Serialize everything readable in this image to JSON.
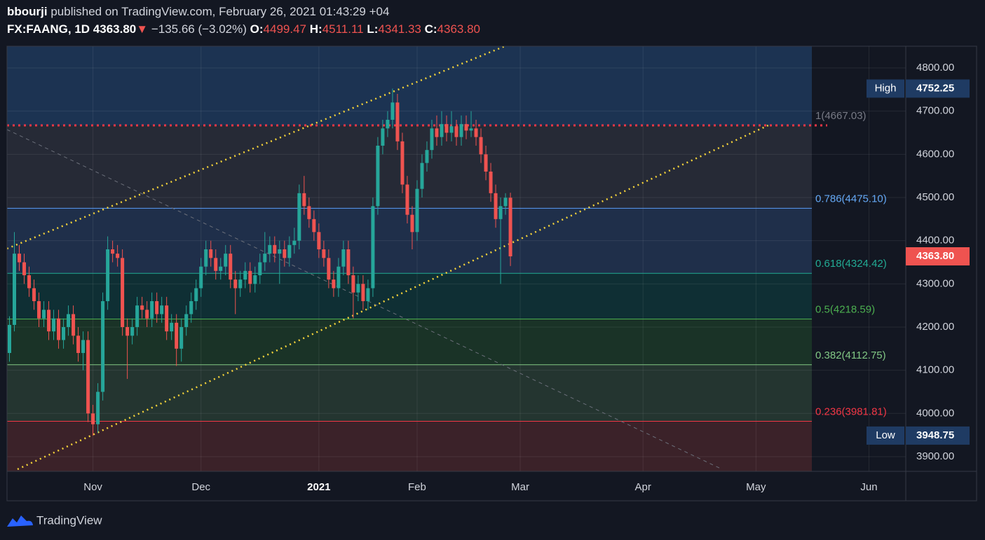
{
  "header": {
    "author": "bbourji",
    "published": "published on TradingView.com, February 26, 2021 01:43:29 +04",
    "symbol": "FX:FAANG, 1D",
    "last": "4363.80",
    "arrow": "▼",
    "change": "−135.66 (−3.02%)",
    "o_label": "O:",
    "o": "4499.47",
    "h_label": "H:",
    "h": "4511.11",
    "l_label": "L:",
    "l": "4341.33",
    "c_label": "C:",
    "c": "4363.80"
  },
  "footer": {
    "brand": "TradingView"
  },
  "chart_data": {
    "type": "candlestick",
    "xlim": [
      -0.5,
      182.5
    ],
    "xticks": [
      {
        "value": 17,
        "label": "Nov"
      },
      {
        "value": 39,
        "label": "Dec"
      },
      {
        "value": 63,
        "label": "2021"
      },
      {
        "value": 83,
        "label": "Feb"
      },
      {
        "value": 104,
        "label": "Mar"
      },
      {
        "value": 129,
        "label": "Apr"
      },
      {
        "value": 152,
        "label": "May"
      },
      {
        "value": 175,
        "label": "Jun"
      }
    ],
    "ylim": [
      3865.9,
      4850.3
    ],
    "yticks": [
      {
        "value": 3900,
        "label": "3900.00"
      },
      {
        "value": 4000,
        "label": "4000.00"
      },
      {
        "value": 4100,
        "label": "4100.00"
      },
      {
        "value": 4200,
        "label": "4200.00"
      },
      {
        "value": 4300,
        "label": "4300.00"
      },
      {
        "value": 4400,
        "label": "4400.00"
      },
      {
        "value": 4500,
        "label": "4500.00"
      },
      {
        "value": 4600,
        "label": "4600.00"
      },
      {
        "value": 4700,
        "label": "4700.00"
      },
      {
        "value": 4800,
        "label": "4800.00"
      }
    ],
    "grid": true,
    "up_color": "#26a69a",
    "down_color": "#ef5350",
    "open": [
      4140,
      4205,
      4370,
      4350,
      4320,
      4290,
      4260,
      4220,
      4240,
      4190,
      4220,
      4170,
      4200,
      4230,
      4180,
      4140,
      4170,
      4000,
      3975,
      4050,
      4260,
      4380,
      4370,
      4360,
      4200,
      4180,
      4200,
      4250,
      4240,
      4220,
      4260,
      4230,
      4250,
      4190,
      4210,
      4150,
      4200,
      4230,
      4260,
      4290,
      4340,
      4380,
      4360,
      4330,
      4340,
      4370,
      4310,
      4290,
      4310,
      4330,
      4300,
      4320,
      4350,
      4370,
      4390,
      4370,
      4380,
      4360,
      4390,
      4400,
      4510,
      4480,
      4450,
      4420,
      4380,
      4360,
      4310,
      4290,
      4340,
      4380,
      4320,
      4280,
      4300,
      4260,
      4290,
      4480,
      4620,
      4660,
      4680,
      4720,
      4630,
      4530,
      4460,
      4420,
      4520,
      4580,
      4610,
      4660,
      4640,
      4670,
      4650,
      4665,
      4640,
      4670,
      4655,
      4660,
      4640,
      4600,
      4560,
      4510,
      4450,
      4480,
      4499.47
    ],
    "high": [
      4225,
      4420,
      4390,
      4370,
      4340,
      4310,
      4280,
      4260,
      4260,
      4240,
      4240,
      4220,
      4250,
      4250,
      4200,
      4190,
      4190,
      4020,
      4070,
      4280,
      4410,
      4400,
      4390,
      4380,
      4220,
      4220,
      4270,
      4270,
      4260,
      4280,
      4280,
      4270,
      4270,
      4230,
      4230,
      4220,
      4250,
      4280,
      4310,
      4360,
      4400,
      4400,
      4380,
      4360,
      4390,
      4390,
      4330,
      4330,
      4350,
      4350,
      4340,
      4370,
      4420,
      4410,
      4410,
      4400,
      4400,
      4410,
      4430,
      4530,
      4550,
      4500,
      4470,
      4440,
      4400,
      4380,
      4330,
      4360,
      4400,
      4400,
      4340,
      4320,
      4320,
      4310,
      4500,
      4640,
      4680,
      4700,
      4752.25,
      4740,
      4650,
      4550,
      4480,
      4540,
      4600,
      4630,
      4680,
      4690,
      4700,
      4690,
      4700,
      4680,
      4690,
      4690,
      4700,
      4680,
      4660,
      4620,
      4580,
      4530,
      4500,
      4510,
      4511.11
    ],
    "low": [
      4120,
      4190,
      4330,
      4300,
      4270,
      4240,
      4200,
      4200,
      4170,
      4170,
      4150,
      4150,
      4180,
      4160,
      4120,
      4100,
      3980,
      3948.75,
      3955,
      4030,
      4240,
      4350,
      4340,
      4180,
      4080,
      4160,
      4180,
      4220,
      4200,
      4200,
      4210,
      4210,
      4170,
      4170,
      4110,
      4120,
      4180,
      4210,
      4240,
      4270,
      4320,
      4340,
      4310,
      4310,
      4320,
      4290,
      4230,
      4270,
      4290,
      4280,
      4280,
      4300,
      4330,
      4350,
      4350,
      4300,
      4340,
      4340,
      4370,
      4380,
      4460,
      4430,
      4400,
      4360,
      4340,
      4290,
      4270,
      4270,
      4320,
      4300,
      4220,
      4260,
      4240,
      4240,
      4270,
      4460,
      4600,
      4640,
      4660,
      4610,
      4510,
      4440,
      4380,
      4400,
      4500,
      4560,
      4590,
      4620,
      4620,
      4630,
      4630,
      4620,
      4620,
      4635,
      4640,
      4620,
      4580,
      4540,
      4490,
      4430,
      4300,
      4460,
      4341.33
    ],
    "close": [
      4205,
      4370,
      4350,
      4320,
      4290,
      4260,
      4220,
      4240,
      4190,
      4220,
      4170,
      4200,
      4230,
      4180,
      4140,
      4170,
      4000,
      3975,
      4050,
      4260,
      4380,
      4370,
      4360,
      4200,
      4180,
      4200,
      4250,
      4240,
      4220,
      4260,
      4230,
      4250,
      4190,
      4210,
      4150,
      4200,
      4230,
      4260,
      4290,
      4340,
      4380,
      4360,
      4330,
      4340,
      4370,
      4310,
      4290,
      4310,
      4330,
      4300,
      4320,
      4350,
      4370,
      4390,
      4370,
      4380,
      4360,
      4390,
      4400,
      4510,
      4480,
      4450,
      4420,
      4380,
      4360,
      4310,
      4290,
      4340,
      4380,
      4320,
      4280,
      4300,
      4260,
      4290,
      4480,
      4620,
      4660,
      4680,
      4720,
      4630,
      4530,
      4460,
      4420,
      4520,
      4580,
      4610,
      4660,
      4640,
      4670,
      4650,
      4665,
      4640,
      4670,
      4655,
      4660,
      4640,
      4600,
      4560,
      4510,
      4450,
      4480,
      4499.47,
      4363.8
    ],
    "fib_levels": [
      {
        "value": 4667.03,
        "label": "1(4667.03)",
        "color": "#787b86",
        "line_color": "#f23645"
      },
      {
        "value": 4475.1,
        "label": "0.786(4475.10)",
        "color": "#64a8f5",
        "line_color": "#5b9cf6"
      },
      {
        "value": 4324.42,
        "label": "0.618(4324.42)",
        "color": "#22ab94",
        "line_color": "#22ab94"
      },
      {
        "value": 4218.59,
        "label": "0.5(4218.59)",
        "color": "#4caf50",
        "line_color": "#4caf50"
      },
      {
        "value": 4112.75,
        "label": "0.382(4112.75)",
        "color": "#81c784",
        "line_color": "#81c784"
      },
      {
        "value": 3981.81,
        "label": "0.236(3981.81)",
        "color": "#f23645",
        "line_color": "#f23645"
      }
    ],
    "fib_band_colors": [
      "#1c3352",
      "#262a36",
      "#1f2f4a",
      "#0f2f34",
      "#1a3327",
      "#243530",
      "#3b2229"
    ],
    "high_badge": {
      "name": "High",
      "value": 4752.25,
      "label": "4752.25"
    },
    "low_badge": {
      "name": "Low",
      "value": 3948.75,
      "label": "3948.75"
    },
    "last_price": {
      "value": 4363.8,
      "label": "4363.80"
    }
  }
}
